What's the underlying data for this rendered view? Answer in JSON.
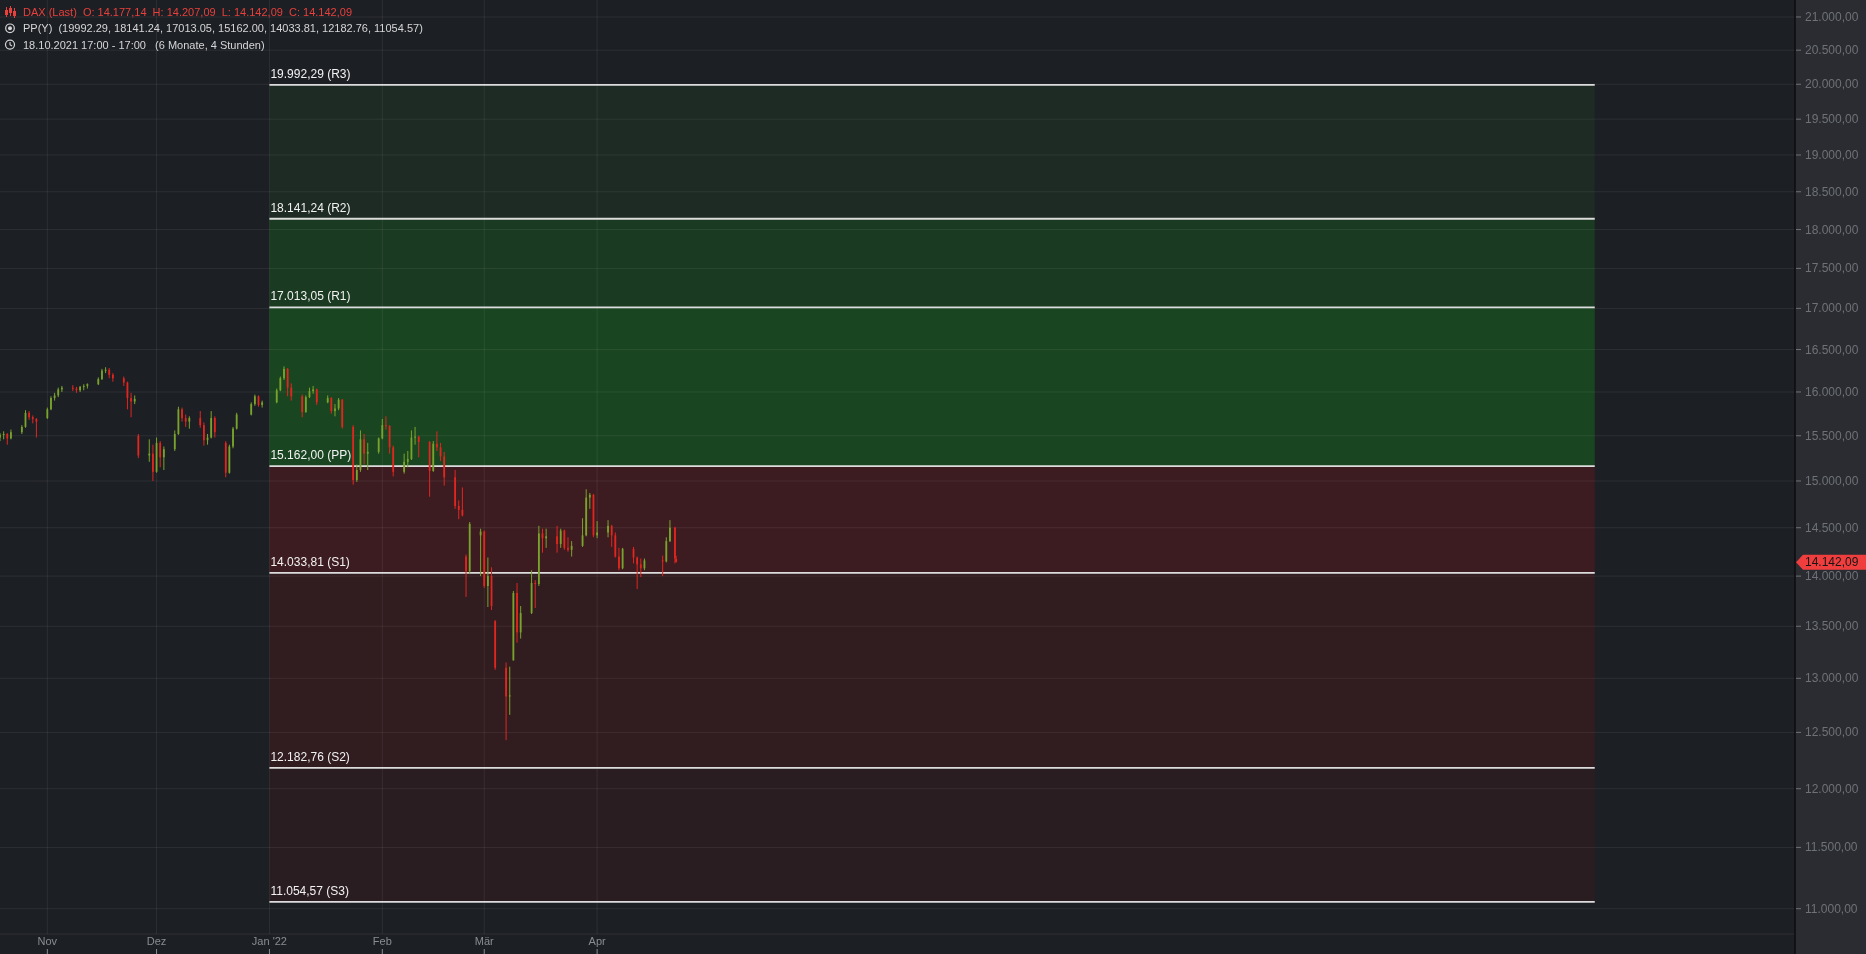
{
  "chart_data": {
    "type": "candlestick",
    "title": "DAX (Last)  O: 14.177,14  H: 14.207,09  L: 14.142,09  C: 14.142,09",
    "subtitle": "PP(Y)  (19992.29, 18141.24, 17013.05, 15162.00, 14033.81, 12182.76, 11054.57)",
    "annotations": [
      "18.10.2021 17:00 - 17:00   (6 Monate, 4 Stunden)",
      "14.142,09"
    ],
    "log": true,
    "grid": true,
    "xlim": [
      "2021-10-19",
      "2023-02-24"
    ],
    "xticks": [
      {
        "value": "2021-11-01",
        "label": "Nov"
      },
      {
        "value": "2021-12-01",
        "label": "Dez"
      },
      {
        "value": "2022-01-01",
        "label": "Jan '22"
      },
      {
        "value": "2022-02-01",
        "label": "Feb"
      },
      {
        "value": "2022-03-01",
        "label": "Mär"
      },
      {
        "value": "2022-04-01",
        "label": "Apr"
      }
    ],
    "ylim": [
      10800,
      21260
    ],
    "yticks": [
      {
        "value": 11000,
        "label": "11.000,00"
      },
      {
        "value": 11500,
        "label": "11.500,00"
      },
      {
        "value": 12000,
        "label": "12.000,00"
      },
      {
        "value": 12500,
        "label": "12.500,00"
      },
      {
        "value": 13000,
        "label": "13.000,00"
      },
      {
        "value": 13500,
        "label": "13.500,00"
      },
      {
        "value": 14000,
        "label": "14.000,00"
      },
      {
        "value": 14500,
        "label": "14.500,00"
      },
      {
        "value": 15000,
        "label": "15.000,00"
      },
      {
        "value": 15500,
        "label": "15.500,00"
      },
      {
        "value": 16000,
        "label": "16.000,00"
      },
      {
        "value": 16500,
        "label": "16.500,00"
      },
      {
        "value": 17000,
        "label": "17.000,00"
      },
      {
        "value": 17500,
        "label": "17.500,00"
      },
      {
        "value": 18000,
        "label": "18.000,00"
      },
      {
        "value": 18500,
        "label": "18.500,00"
      },
      {
        "value": 19000,
        "label": "19.000,00"
      },
      {
        "value": 19500,
        "label": "19.500,00"
      },
      {
        "value": 20000,
        "label": "20.000,00"
      },
      {
        "value": 20500,
        "label": "20.500,00"
      },
      {
        "value": 21000,
        "label": "21.000,00"
      }
    ],
    "bands": [
      {
        "axis": "y",
        "from": 18141.24,
        "to": 19992.29,
        "color": "#1d2b24"
      },
      {
        "axis": "y",
        "from": 17013.05,
        "to": 18141.24,
        "color": "#1b3a22"
      },
      {
        "axis": "y",
        "from": 15162,
        "to": 17013.05,
        "color": "#1a4521"
      },
      {
        "axis": "y",
        "from": 14033.81,
        "to": 15162,
        "color": "#3c1c21"
      },
      {
        "axis": "y",
        "from": 12182.76,
        "to": 14033.81,
        "color": "#311c20"
      },
      {
        "axis": "y",
        "from": 11054.57,
        "to": 12182.76,
        "color": "#2a1d21"
      }
    ],
    "series": [
      {
        "type": "line",
        "name": "19.992,29 (R3)",
        "color": "#dcdcdc",
        "x": [
          "2022-01-01",
          "2022-12-31"
        ],
        "values": [
          19992.29,
          19992.29
        ]
      },
      {
        "type": "line",
        "name": "18.141,24 (R2)",
        "color": "#dcdcdc",
        "x": [
          "2022-01-01",
          "2022-12-31"
        ],
        "values": [
          18141.24,
          18141.24
        ]
      },
      {
        "type": "line",
        "name": "17.013,05 (R1)",
        "color": "#dcdcdc",
        "x": [
          "2022-01-01",
          "2022-12-31"
        ],
        "values": [
          17013.05,
          17013.05
        ]
      },
      {
        "type": "line",
        "name": "15.162,00 (PP)",
        "color": "#dcdcdc",
        "x": [
          "2022-01-01",
          "2022-12-31"
        ],
        "values": [
          15162,
          15162
        ]
      },
      {
        "type": "line",
        "name": "14.033,81 (S1)",
        "color": "#dcdcdc",
        "x": [
          "2022-01-01",
          "2022-12-31"
        ],
        "values": [
          14033.81,
          14033.81
        ]
      },
      {
        "type": "line",
        "name": "12.182,76 (S2)",
        "color": "#dcdcdc",
        "x": [
          "2022-01-01",
          "2022-12-31"
        ],
        "values": [
          12182.76,
          12182.76
        ]
      },
      {
        "type": "line",
        "name": "11.054,57 (S3)",
        "color": "#dcdcdc",
        "x": [
          "2022-01-01",
          "2022-12-31"
        ],
        "values": [
          11054.57,
          11054.57
        ]
      }
    ],
    "x": [
      "2021-10-19",
      "2021-10-20",
      "2021-10-21",
      "2021-10-22",
      "2021-10-25",
      "2021-10-26",
      "2021-10-27",
      "2021-10-28",
      "2021-10-29",
      "2021-11-01",
      "2021-11-02",
      "2021-11-03",
      "2021-11-04",
      "2021-11-05",
      "2021-11-08",
      "2021-11-09",
      "2021-11-10",
      "2021-11-11",
      "2021-11-12",
      "2021-11-15",
      "2021-11-16",
      "2021-11-17",
      "2021-11-18",
      "2021-11-19",
      "2021-11-22",
      "2021-11-23",
      "2021-11-24",
      "2021-11-25",
      "2021-11-26",
      "2021-11-29",
      "2021-11-30",
      "2021-12-01",
      "2021-12-02",
      "2021-12-03",
      "2021-12-06",
      "2021-12-07",
      "2021-12-08",
      "2021-12-09",
      "2021-12-10",
      "2021-12-13",
      "2021-12-14",
      "2021-12-15",
      "2021-12-16",
      "2021-12-17",
      "2021-12-20",
      "2021-12-21",
      "2021-12-22",
      "2021-12-23",
      "2021-12-27",
      "2021-12-28",
      "2021-12-29",
      "2021-12-30",
      "2022-01-03",
      "2022-01-04",
      "2022-01-05",
      "2022-01-06",
      "2022-01-07",
      "2022-01-10",
      "2022-01-11",
      "2022-01-12",
      "2022-01-13",
      "2022-01-14",
      "2022-01-17",
      "2022-01-18",
      "2022-01-19",
      "2022-01-20",
      "2022-01-21",
      "2022-01-24",
      "2022-01-25",
      "2022-01-26",
      "2022-01-27",
      "2022-01-28",
      "2022-01-31",
      "2022-02-01",
      "2022-02-02",
      "2022-02-03",
      "2022-02-04",
      "2022-02-07",
      "2022-02-08",
      "2022-02-09",
      "2022-02-10",
      "2022-02-11",
      "2022-02-14",
      "2022-02-15",
      "2022-02-16",
      "2022-02-17",
      "2022-02-18",
      "2022-02-21",
      "2022-02-22",
      "2022-02-23",
      "2022-02-24",
      "2022-02-25",
      "2022-02-28",
      "2022-03-01",
      "2022-03-02",
      "2022-03-03",
      "2022-03-04",
      "2022-03-07",
      "2022-03-08",
      "2022-03-09",
      "2022-03-10",
      "2022-03-11",
      "2022-03-14",
      "2022-03-15",
      "2022-03-16",
      "2022-03-17",
      "2022-03-18",
      "2022-03-21",
      "2022-03-22",
      "2022-03-23",
      "2022-03-24",
      "2022-03-25",
      "2022-03-28",
      "2022-03-29",
      "2022-03-30",
      "2022-03-31",
      "2022-04-01",
      "2022-04-04",
      "2022-04-05",
      "2022-04-06",
      "2022-04-07",
      "2022-04-08",
      "2022-04-11",
      "2022-04-12",
      "2022-04-13",
      "2022-04-14",
      "2022-04-19",
      "2022-04-20",
      "2022-04-21",
      "2022-04-22T09:00",
      "2022-04-22T17:00"
    ],
    "ohlc": [
      [
        15480,
        15530,
        15440,
        15510
      ],
      [
        15510,
        15550,
        15460,
        15520
      ],
      [
        15520,
        15530,
        15400,
        15470
      ],
      [
        15470,
        15570,
        15460,
        15540
      ],
      [
        15540,
        15620,
        15520,
        15600
      ],
      [
        15600,
        15790,
        15590,
        15760
      ],
      [
        15760,
        15780,
        15680,
        15710
      ],
      [
        15710,
        15730,
        15640,
        15690
      ],
      [
        15690,
        15700,
        15480,
        15660
      ],
      [
        15700,
        15820,
        15690,
        15800
      ],
      [
        15800,
        15950,
        15790,
        15930
      ],
      [
        15930,
        15990,
        15900,
        15960
      ],
      [
        15960,
        16050,
        15940,
        16030
      ],
      [
        16030,
        16070,
        16000,
        16050
      ],
      [
        16050,
        16080,
        16010,
        16040
      ],
      [
        16040,
        16060,
        15990,
        16020
      ],
      [
        16020,
        16070,
        16000,
        16060
      ],
      [
        16060,
        16090,
        16020,
        16070
      ],
      [
        16070,
        16100,
        16040,
        16090
      ],
      [
        16090,
        16170,
        16080,
        16150
      ],
      [
        16150,
        16270,
        16140,
        16250
      ],
      [
        16250,
        16290,
        16220,
        16260
      ],
      [
        16260,
        16280,
        16160,
        16200
      ],
      [
        16200,
        16220,
        16120,
        16160
      ],
      [
        16160,
        16180,
        16070,
        16110
      ],
      [
        16110,
        16120,
        15800,
        15930
      ],
      [
        15930,
        15990,
        15710,
        15890
      ],
      [
        15890,
        15960,
        15860,
        15920
      ],
      [
        15500,
        15520,
        15250,
        15280
      ],
      [
        15280,
        15460,
        15210,
        15300
      ],
      [
        15300,
        15400,
        15000,
        15100
      ],
      [
        15100,
        15480,
        15090,
        15420
      ],
      [
        15420,
        15440,
        15150,
        15260
      ],
      [
        15260,
        15380,
        15120,
        15350
      ],
      [
        15350,
        15560,
        15330,
        15520
      ],
      [
        15520,
        15830,
        15510,
        15800
      ],
      [
        15800,
        15820,
        15660,
        15700
      ],
      [
        15700,
        15740,
        15600,
        15660
      ],
      [
        15660,
        15720,
        15580,
        15700
      ],
      [
        15700,
        15780,
        15590,
        15620
      ],
      [
        15620,
        15650,
        15390,
        15450
      ],
      [
        15450,
        15520,
        15400,
        15480
      ],
      [
        15480,
        15780,
        15470,
        15700
      ],
      [
        15700,
        15720,
        15480,
        15540
      ],
      [
        15420,
        15440,
        15040,
        15090
      ],
      [
        15090,
        15400,
        15080,
        15380
      ],
      [
        15380,
        15600,
        15360,
        15580
      ],
      [
        15580,
        15760,
        15570,
        15740
      ],
      [
        15740,
        15880,
        15730,
        15860
      ],
      [
        15860,
        15970,
        15840,
        15950
      ],
      [
        15950,
        15960,
        15830,
        15850
      ],
      [
        15850,
        15900,
        15820,
        15880
      ],
      [
        15880,
        16040,
        15870,
        16020
      ],
      [
        16020,
        16180,
        16010,
        16160
      ],
      [
        16160,
        16300,
        16140,
        16270
      ],
      [
        16270,
        16280,
        15950,
        16050
      ],
      [
        16050,
        16100,
        15900,
        15950
      ],
      [
        15950,
        15970,
        15710,
        15770
      ],
      [
        15770,
        15960,
        15760,
        15940
      ],
      [
        15940,
        16050,
        15930,
        16010
      ],
      [
        16010,
        16070,
        15980,
        16030
      ],
      [
        16030,
        16040,
        15850,
        15880
      ],
      [
        15880,
        15960,
        15870,
        15930
      ],
      [
        15930,
        15940,
        15750,
        15780
      ],
      [
        15780,
        15860,
        15720,
        15810
      ],
      [
        15810,
        15930,
        15790,
        15910
      ],
      [
        15910,
        15920,
        15580,
        15600
      ],
      [
        15600,
        15620,
        14960,
        15010
      ],
      [
        15010,
        15180,
        14990,
        15120
      ],
      [
        15120,
        15560,
        15100,
        15460
      ],
      [
        15460,
        15520,
        15180,
        15300
      ],
      [
        15300,
        15420,
        15120,
        15320
      ],
      [
        15320,
        15480,
        15300,
        15470
      ],
      [
        15470,
        15690,
        15460,
        15620
      ],
      [
        15620,
        15720,
        15570,
        15610
      ],
      [
        15610,
        15620,
        15300,
        15370
      ],
      [
        15370,
        15390,
        15050,
        15100
      ],
      [
        15100,
        15300,
        15080,
        15210
      ],
      [
        15210,
        15330,
        15150,
        15240
      ],
      [
        15240,
        15560,
        15230,
        15480
      ],
      [
        15480,
        15600,
        15400,
        15490
      ],
      [
        15490,
        15500,
        15260,
        15430
      ],
      [
        15430,
        15440,
        14830,
        15110
      ],
      [
        15110,
        15440,
        15100,
        15410
      ],
      [
        15410,
        15550,
        15330,
        15370
      ],
      [
        15370,
        15420,
        15220,
        15270
      ],
      [
        15270,
        15320,
        14950,
        15040
      ],
      [
        15040,
        15120,
        14700,
        14730
      ],
      [
        14730,
        14790,
        14590,
        14690
      ],
      [
        14690,
        14930,
        14620,
        14630
      ],
      [
        14200,
        14220,
        13790,
        14050
      ],
      [
        14050,
        14560,
        14020,
        14540
      ],
      [
        14420,
        14490,
        14000,
        14460
      ],
      [
        14460,
        14470,
        13880,
        13900
      ],
      [
        13900,
        14190,
        13690,
        14000
      ],
      [
        14000,
        14090,
        13660,
        13700
      ],
      [
        13550,
        13560,
        13080,
        13100
      ],
      [
        13100,
        13150,
        12430,
        12830
      ],
      [
        12830,
        13110,
        12660,
        12840
      ],
      [
        13170,
        13850,
        13170,
        13830
      ],
      [
        13830,
        13930,
        13340,
        13440
      ],
      [
        13440,
        13700,
        13380,
        13630
      ],
      [
        13630,
        14060,
        13620,
        13930
      ],
      [
        13930,
        13960,
        13680,
        13920
      ],
      [
        13920,
        14520,
        13900,
        14440
      ],
      [
        14440,
        14490,
        14240,
        14390
      ],
      [
        14390,
        14490,
        14290,
        14410
      ],
      [
        14410,
        14520,
        14240,
        14330
      ],
      [
        14330,
        14490,
        14290,
        14470
      ],
      [
        14470,
        14480,
        14270,
        14290
      ],
      [
        14290,
        14400,
        14250,
        14270
      ],
      [
        14270,
        14360,
        14200,
        14310
      ],
      [
        14310,
        14600,
        14300,
        14420
      ],
      [
        14420,
        14910,
        14410,
        14820
      ],
      [
        14820,
        14870,
        14700,
        14850
      ],
      [
        14850,
        14860,
        14400,
        14420
      ],
      [
        14420,
        14570,
        14390,
        14450
      ],
      [
        14450,
        14580,
        14400,
        14520
      ],
      [
        14520,
        14530,
        14300,
        14420
      ],
      [
        14420,
        14450,
        14190,
        14200
      ],
      [
        14200,
        14290,
        14060,
        14080
      ],
      [
        14080,
        14290,
        14070,
        14280
      ],
      [
        14280,
        14300,
        14130,
        14190
      ],
      [
        14190,
        14200,
        13870,
        14120
      ],
      [
        14120,
        14180,
        13990,
        14080
      ],
      [
        14080,
        14180,
        14060,
        14160
      ],
      [
        14160,
        14210,
        14000,
        14150
      ],
      [
        14150,
        14400,
        14140,
        14360
      ],
      [
        14360,
        14580,
        14350,
        14500
      ],
      [
        14500,
        14510,
        14130,
        14180
      ],
      [
        14177.14,
        14207.09,
        14142.09,
        14142.09
      ]
    ],
    "colors": [
      "#79a32c",
      "#79a32c",
      "#e0261f",
      "#79a32c",
      "#79a32c",
      "#79a32c",
      "#e0261f",
      "#e0261f",
      "#e0261f",
      "#79a32c",
      "#79a32c",
      "#79a32c",
      "#79a32c",
      "#79a32c",
      "#e0261f",
      "#e0261f",
      "#79a32c",
      "#79a32c",
      "#79a32c",
      "#79a32c",
      "#79a32c",
      "#79a32c",
      "#e0261f",
      "#e0261f",
      "#e0261f",
      "#e0261f",
      "#e0261f",
      "#79a32c",
      "#e0261f",
      "#79a32c",
      "#e0261f",
      "#79a32c",
      "#e0261f",
      "#79a32c",
      "#79a32c",
      "#79a32c",
      "#e0261f",
      "#e0261f",
      "#79a32c",
      "#e0261f",
      "#e0261f",
      "#79a32c",
      "#79a32c",
      "#e0261f",
      "#e0261f",
      "#79a32c",
      "#79a32c",
      "#79a32c",
      "#79a32c",
      "#79a32c",
      "#e0261f",
      "#79a32c",
      "#79a32c",
      "#79a32c",
      "#79a32c",
      "#e0261f",
      "#e0261f",
      "#e0261f",
      "#79a32c",
      "#79a32c",
      "#79a32c",
      "#e0261f",
      "#79a32c",
      "#e0261f",
      "#79a32c",
      "#79a32c",
      "#e0261f",
      "#e0261f",
      "#79a32c",
      "#79a32c",
      "#e0261f",
      "#79a32c",
      "#79a32c",
      "#79a32c",
      "#e0261f",
      "#e0261f",
      "#e0261f",
      "#79a32c",
      "#79a32c",
      "#79a32c",
      "#79a32c",
      "#e0261f",
      "#e0261f",
      "#79a32c",
      "#e0261f",
      "#e0261f",
      "#e0261f",
      "#e0261f",
      "#e0261f",
      "#e0261f",
      "#e0261f",
      "#79a32c",
      "#79a32c",
      "#e0261f",
      "#79a32c",
      "#e0261f",
      "#e0261f",
      "#e0261f",
      "#79a32c",
      "#79a32c",
      "#e0261f",
      "#79a32c",
      "#79a32c",
      "#e0261f",
      "#79a32c",
      "#e0261f",
      "#79a32c",
      "#e0261f",
      "#79a32c",
      "#e0261f",
      "#e0261f",
      "#79a32c",
      "#79a32c",
      "#79a32c",
      "#79a32c",
      "#e0261f",
      "#79a32c",
      "#79a32c",
      "#e0261f",
      "#e0261f",
      "#e0261f",
      "#79a32c",
      "#e0261f",
      "#e0261f",
      "#e0261f",
      "#79a32c",
      "#e0261f",
      "#79a32c",
      "#79a32c",
      "#e0261f",
      "#e0261f"
    ]
  }
}
